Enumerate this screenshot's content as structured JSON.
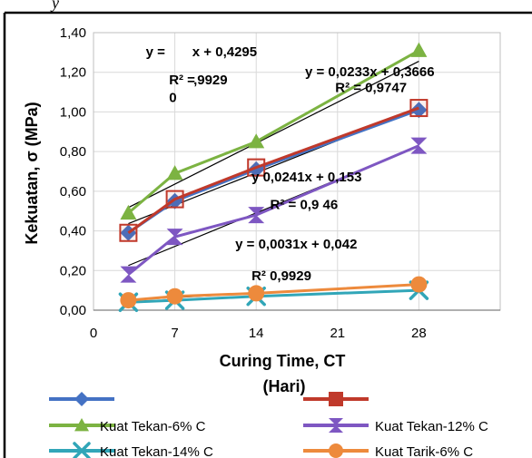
{
  "header_fragment": "y",
  "chart_data": {
    "type": "line",
    "xlabel": "Curing Time, CT",
    "xlabel_unit": "(Hari)",
    "ylabel": "Kekuatan, σ (MPa)",
    "xlim": [
      0,
      35
    ],
    "ylim": [
      0,
      1.4
    ],
    "x_ticks": [
      0,
      7,
      14,
      21,
      28
    ],
    "y_ticks": [
      0,
      0.2,
      0.4,
      0.6,
      0.8,
      1.0,
      1.2,
      1.4
    ],
    "x_tick_labels": [
      "0",
      "7",
      "14",
      "21",
      "28"
    ],
    "y_tick_labels": [
      "0,00",
      "0,20",
      "0,40",
      "0,60",
      "0,80",
      "1,00",
      "1,20",
      "1,40"
    ],
    "grid": true,
    "series": [
      {
        "name": "",
        "color": "#4472c4",
        "marker": "diamond",
        "x": [
          3,
          7,
          14,
          28
        ],
        "y": [
          0.39,
          0.55,
          0.71,
          1.01
        ]
      },
      {
        "name": "",
        "color": "#c0392b",
        "marker": "square-open",
        "x": [
          3,
          7,
          14,
          28
        ],
        "y": [
          0.39,
          0.56,
          0.72,
          1.02
        ]
      },
      {
        "name": "Kuat Tekan-6% C",
        "color": "#7cb342",
        "marker": "triangle",
        "x": [
          3,
          7,
          14,
          28
        ],
        "y": [
          0.49,
          0.69,
          0.85,
          1.31
        ]
      },
      {
        "name": "Kuat Tekan-12% C",
        "color": "#7e57c2",
        "marker": "hourglass",
        "x": [
          3,
          7,
          14,
          28
        ],
        "y": [
          0.18,
          0.37,
          0.48,
          0.83
        ]
      },
      {
        "name": "Kuat Tekan-14% C",
        "color": "#31a6b8",
        "marker": "x",
        "x": [
          3,
          7,
          14,
          28
        ],
        "y": [
          0.04,
          0.05,
          0.07,
          0.1
        ]
      },
      {
        "name": "Kuat Tarik-6% C",
        "color": "#ed8a3c",
        "marker": "circle",
        "x": [
          3,
          7,
          14,
          28
        ],
        "y": [
          0.05,
          0.07,
          0.085,
          0.13
        ]
      }
    ],
    "trendlines": [
      {
        "color": "#000000",
        "slope": 0.0233,
        "intercept": 0.3666
      },
      {
        "color": "#000000",
        "slope": 0.0295,
        "intercept": 0.4295
      },
      {
        "color": "#000000",
        "slope": 0.0241,
        "intercept": 0.153
      },
      {
        "color": "#000000",
        "slope": 0.0031,
        "intercept": 0.042
      }
    ],
    "annotations": [
      {
        "text": "y =",
        "x": 4.5,
        "y": 1.28
      },
      {
        "text": "x + 0,4295",
        "x": 8.5,
        "y": 1.28
      },
      {
        "text": "R² =",
        "x": 6.5,
        "y": 1.14
      },
      {
        "text": ",9929",
        "x": 8.6,
        "y": 1.14
      },
      {
        "text": "0",
        "x": 6.5,
        "y": 1.05
      },
      {
        "text": "y = 0,0233x + 0,3666",
        "x": 18.2,
        "y": 1.18
      },
      {
        "text": "R² = 0,9747",
        "x": 20.8,
        "y": 1.1
      },
      {
        "text": "y 0,0241x + 0,153",
        "x": 13.6,
        "y": 0.65
      },
      {
        "text": "R² = 0,9 46",
        "x": 15.2,
        "y": 0.51
      },
      {
        "text": "y = 0,0031x + 0,042",
        "x": 12.2,
        "y": 0.31
      },
      {
        "text": "R²   0,9929",
        "x": 13.6,
        "y": 0.15
      }
    ]
  }
}
